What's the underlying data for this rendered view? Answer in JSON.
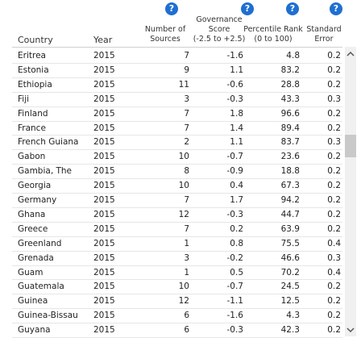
{
  "table": {
    "help_icon": "?",
    "headers": [
      [
        "Country"
      ],
      [
        "Year"
      ],
      [
        "Number of",
        "Sources"
      ],
      [
        "Governance",
        "Score",
        "(-2.5 to +2.5)"
      ],
      [
        "Percentile Rank",
        "(0 to 100)"
      ],
      [
        "Standard",
        "Error"
      ]
    ],
    "rows": [
      [
        "Eritrea",
        "2015",
        "7",
        "-1.6",
        "4.8",
        "0.2"
      ],
      [
        "Estonia",
        "2015",
        "9",
        "1.1",
        "83.2",
        "0.2"
      ],
      [
        "Ethiopia",
        "2015",
        "11",
        "-0.6",
        "28.8",
        "0.2"
      ],
      [
        "Fiji",
        "2015",
        "3",
        "-0.3",
        "43.3",
        "0.3"
      ],
      [
        "Finland",
        "2015",
        "7",
        "1.8",
        "96.6",
        "0.2"
      ],
      [
        "France",
        "2015",
        "7",
        "1.4",
        "89.4",
        "0.2"
      ],
      [
        "French Guiana",
        "2015",
        "2",
        "1.1",
        "83.7",
        "0.3"
      ],
      [
        "Gabon",
        "2015",
        "10",
        "-0.7",
        "23.6",
        "0.2"
      ],
      [
        "Gambia, The",
        "2015",
        "8",
        "-0.9",
        "18.8",
        "0.2"
      ],
      [
        "Georgia",
        "2015",
        "10",
        "0.4",
        "67.3",
        "0.2"
      ],
      [
        "Germany",
        "2015",
        "7",
        "1.7",
        "94.2",
        "0.2"
      ],
      [
        "Ghana",
        "2015",
        "12",
        "-0.3",
        "44.7",
        "0.2"
      ],
      [
        "Greece",
        "2015",
        "7",
        "0.2",
        "63.9",
        "0.2"
      ],
      [
        "Greenland",
        "2015",
        "1",
        "0.8",
        "75.5",
        "0.4"
      ],
      [
        "Grenada",
        "2015",
        "3",
        "-0.2",
        "46.6",
        "0.3"
      ],
      [
        "Guam",
        "2015",
        "1",
        "0.5",
        "70.2",
        "0.4"
      ],
      [
        "Guatemala",
        "2015",
        "10",
        "-0.7",
        "24.5",
        "0.2"
      ],
      [
        "Guinea",
        "2015",
        "12",
        "-1.1",
        "12.5",
        "0.2"
      ],
      [
        "Guinea-Bissau",
        "2015",
        "6",
        "-1.6",
        "4.3",
        "0.2"
      ],
      [
        "Guyana",
        "2015",
        "6",
        "-0.3",
        "42.3",
        "0.2"
      ]
    ]
  }
}
